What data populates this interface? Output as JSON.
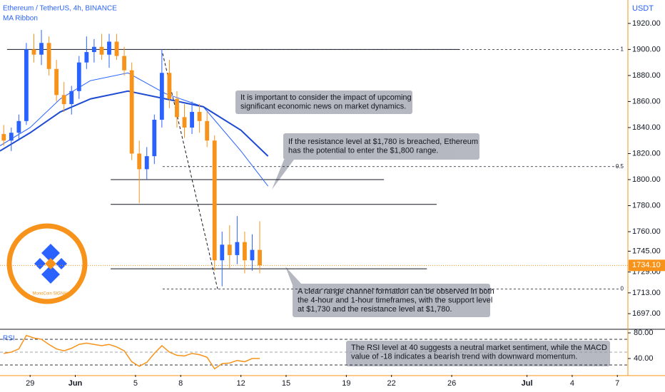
{
  "chart_data": {
    "type": "candlestick",
    "title": "Ethereum / TetherUS, 4h, BINANCE",
    "indicator": "MA Ribbon",
    "currency": "USDT",
    "xlim": [
      0,
      41.7
    ],
    "xticks": [
      {
        "value": 2,
        "label": "29"
      },
      {
        "value": 5,
        "label": "Jun"
      },
      {
        "value": 9,
        "label": "5"
      },
      {
        "value": 12,
        "label": "8"
      },
      {
        "value": 16,
        "label": "12"
      },
      {
        "value": 19,
        "label": "15"
      },
      {
        "value": 23,
        "label": "19"
      },
      {
        "value": 26,
        "label": "22"
      },
      {
        "value": 30,
        "label": "26"
      },
      {
        "value": 35,
        "label": "Jul"
      },
      {
        "value": 38,
        "label": "4"
      },
      {
        "value": 41,
        "label": "7"
      }
    ],
    "ylim": [
      1685,
      1938
    ],
    "yticks": [
      {
        "value": 1920,
        "label": "1920.00"
      },
      {
        "value": 1900,
        "label": "1900.00"
      },
      {
        "value": 1880,
        "label": "1880.00"
      },
      {
        "value": 1860,
        "label": "1860.00"
      },
      {
        "value": 1840,
        "label": "1840.00"
      },
      {
        "value": 1820,
        "label": "1820.00"
      },
      {
        "value": 1800,
        "label": "1800.00"
      },
      {
        "value": 1780,
        "label": "1780.00"
      },
      {
        "value": 1760,
        "label": "1760.00"
      },
      {
        "value": 1745,
        "label": "1745.00"
      },
      {
        "value": 1729,
        "label": "1729.00"
      },
      {
        "value": 1713,
        "label": "1713.00"
      },
      {
        "value": 1697,
        "label": "1697.00"
      }
    ],
    "up_color": "#2962ff",
    "down_color": "#f7931a",
    "candles": [
      {
        "x": 0.25,
        "open": 1835,
        "high": 1842,
        "low": 1826,
        "close": 1830
      },
      {
        "x": 0.75,
        "open": 1830,
        "high": 1840,
        "low": 1822,
        "close": 1836
      },
      {
        "x": 1.25,
        "open": 1836,
        "high": 1850,
        "low": 1830,
        "close": 1845
      },
      {
        "x": 1.75,
        "open": 1845,
        "high": 1905,
        "low": 1842,
        "close": 1900
      },
      {
        "x": 2.25,
        "open": 1900,
        "high": 1912,
        "low": 1890,
        "close": 1896
      },
      {
        "x": 2.75,
        "open": 1896,
        "high": 1915,
        "low": 1888,
        "close": 1905
      },
      {
        "x": 3.25,
        "open": 1905,
        "high": 1910,
        "low": 1880,
        "close": 1885
      },
      {
        "x": 3.75,
        "open": 1885,
        "high": 1892,
        "low": 1860,
        "close": 1865
      },
      {
        "x": 4.25,
        "open": 1865,
        "high": 1875,
        "low": 1852,
        "close": 1858
      },
      {
        "x": 4.75,
        "open": 1858,
        "high": 1872,
        "low": 1850,
        "close": 1868
      },
      {
        "x": 5.25,
        "open": 1868,
        "high": 1895,
        "low": 1862,
        "close": 1890
      },
      {
        "x": 5.75,
        "open": 1890,
        "high": 1910,
        "low": 1885,
        "close": 1898
      },
      {
        "x": 6.25,
        "open": 1898,
        "high": 1908,
        "low": 1890,
        "close": 1902
      },
      {
        "x": 6.75,
        "open": 1902,
        "high": 1912,
        "low": 1892,
        "close": 1896
      },
      {
        "x": 7.25,
        "open": 1896,
        "high": 1912,
        "low": 1886,
        "close": 1906
      },
      {
        "x": 7.75,
        "open": 1906,
        "high": 1912,
        "low": 1892,
        "close": 1895
      },
      {
        "x": 8.25,
        "open": 1895,
        "high": 1902,
        "low": 1880,
        "close": 1884
      },
      {
        "x": 8.75,
        "open": 1884,
        "high": 1890,
        "low": 1815,
        "close": 1820
      },
      {
        "x": 9.25,
        "open": 1820,
        "high": 1830,
        "low": 1782,
        "close": 1808
      },
      {
        "x": 9.75,
        "open": 1808,
        "high": 1825,
        "low": 1800,
        "close": 1818
      },
      {
        "x": 10.25,
        "open": 1818,
        "high": 1850,
        "low": 1812,
        "close": 1846
      },
      {
        "x": 10.75,
        "open": 1846,
        "high": 1900,
        "low": 1840,
        "close": 1882
      },
      {
        "x": 11.25,
        "open": 1882,
        "high": 1892,
        "low": 1855,
        "close": 1862
      },
      {
        "x": 11.75,
        "open": 1862,
        "high": 1868,
        "low": 1840,
        "close": 1848
      },
      {
        "x": 12.25,
        "open": 1848,
        "high": 1858,
        "low": 1832,
        "close": 1840
      },
      {
        "x": 12.75,
        "open": 1840,
        "high": 1860,
        "low": 1835,
        "close": 1852
      },
      {
        "x": 13.25,
        "open": 1852,
        "high": 1858,
        "low": 1836,
        "close": 1845
      },
      {
        "x": 13.75,
        "open": 1845,
        "high": 1852,
        "low": 1825,
        "close": 1830
      },
      {
        "x": 14.25,
        "open": 1830,
        "high": 1834,
        "low": 1730,
        "close": 1738
      },
      {
        "x": 14.75,
        "open": 1738,
        "high": 1760,
        "low": 1718,
        "close": 1750
      },
      {
        "x": 15.25,
        "open": 1750,
        "high": 1765,
        "low": 1732,
        "close": 1742
      },
      {
        "x": 15.75,
        "open": 1742,
        "high": 1772,
        "low": 1735,
        "close": 1752
      },
      {
        "x": 16.25,
        "open": 1752,
        "high": 1760,
        "low": 1728,
        "close": 1738
      },
      {
        "x": 16.75,
        "open": 1738,
        "high": 1758,
        "low": 1730,
        "close": 1746
      },
      {
        "x": 17.25,
        "open": 1746,
        "high": 1768,
        "low": 1728,
        "close": 1734.1
      }
    ],
    "ma_ribbon": [
      {
        "color": "#2962ff",
        "width": 1,
        "x": [
          0,
          2,
          4,
          6,
          8.5,
          11,
          13.5,
          16,
          17.8
        ],
        "values": [
          1826,
          1840,
          1862,
          1876,
          1882,
          1866,
          1856,
          1822,
          1795
        ]
      },
      {
        "color": "#1e4bd2",
        "width": 2,
        "x": [
          0,
          2,
          4,
          6,
          8.5,
          11,
          13.5,
          16,
          17.8
        ],
        "values": [
          1822,
          1836,
          1852,
          1862,
          1868,
          1862,
          1856,
          1838,
          1818
        ]
      }
    ],
    "levels": [
      {
        "price": 1900,
        "from": 0.47,
        "to": 30.5
      },
      {
        "price": 1800,
        "from": 7.35,
        "to": 25.5
      },
      {
        "price": 1781,
        "from": 7.35,
        "to": 29
      },
      {
        "price": 1731.5,
        "from": 7.35,
        "to": 28.35
      }
    ],
    "fib_levels": [
      {
        "ratio": 1,
        "price": 1900
      },
      {
        "ratio": 0.5,
        "price": 1810
      },
      {
        "ratio": 0,
        "price": 1716
      }
    ],
    "fib_range": [
      10.8,
      41.2
    ],
    "trend_line": {
      "x": [
        10.8,
        14.45
      ],
      "values": [
        1897,
        1716
      ]
    },
    "last_price": {
      "value": 1734.1,
      "label": "1734.10"
    },
    "rsi": {
      "name": "RSI",
      "color": "#f7931a",
      "ylim": [
        15.6,
        85.6
      ],
      "yticks": [
        {
          "value": 80,
          "label": "80.00"
        },
        {
          "value": 40,
          "label": "40.00"
        }
      ],
      "bands": [
        70,
        50,
        30
      ],
      "x": [
        0.25,
        0.75,
        1.25,
        1.75,
        2.25,
        2.75,
        3.25,
        3.75,
        4.25,
        4.75,
        5.25,
        5.75,
        6.25,
        6.75,
        7.25,
        7.75,
        8.25,
        8.75,
        9.25,
        9.75,
        10.25,
        10.75,
        11.25,
        11.75,
        12.25,
        12.75,
        13.25,
        13.75,
        14.25,
        14.75,
        15.25,
        15.75,
        16.25,
        16.75,
        17.25
      ],
      "values": [
        48,
        50,
        55,
        76,
        72,
        70,
        62,
        55,
        52,
        56,
        62,
        64,
        62,
        60,
        62,
        58,
        52,
        35,
        28,
        34,
        48,
        60,
        50,
        45,
        44,
        48,
        46,
        42,
        24,
        32,
        33,
        37,
        35,
        40,
        40
      ]
    },
    "annotations": [
      {
        "lines": [
          "It is important to consider the impact of upcoming",
          "significant economic news on market dynamics."
        ]
      },
      {
        "lines": [
          "If the resistance level at $1,780 is breached, Ethereum",
          "has the potential to enter the $1,800 range."
        ]
      },
      {
        "lines": [
          "A clear range channel formation can be observed in both",
          "the 4-hour and 1-hour timeframes, with the support level",
          "at $1,730 and the resistance level at $1,780."
        ]
      },
      {
        "lines": [
          "The RSI level at 40 suggests a neutral market sentiment, while the MACD",
          "value of -18 indicates a bearish trend with downward momentum."
        ]
      }
    ],
    "logo_text": "MonoCoin SIGNAL"
  }
}
